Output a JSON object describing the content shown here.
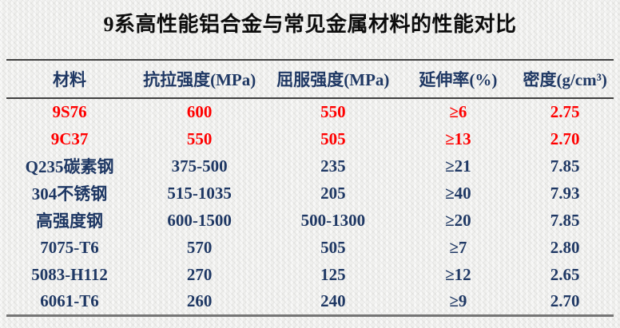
{
  "title": "9系高性能铝合金与常见金属材料的性能对比",
  "table": {
    "columns": [
      "材料",
      "抗拉强度(MPa)",
      "屈服强度(MPa)",
      "延伸率(%)",
      "密度(g/cm³)"
    ],
    "rows": [
      {
        "material": "9S76",
        "tensile": "600",
        "yield": "550",
        "elongation": "≥6",
        "density": "2.75",
        "highlighted": true
      },
      {
        "material": "9C37",
        "tensile": "550",
        "yield": "505",
        "elongation": "≥13",
        "density": "2.70",
        "highlighted": true
      },
      {
        "material": "Q235碳素钢",
        "tensile": "375-500",
        "yield": "235",
        "elongation": "≥21",
        "density": "7.85",
        "highlighted": false
      },
      {
        "material": "304不锈钢",
        "tensile": "515-1035",
        "yield": "205",
        "elongation": "≥40",
        "density": "7.93",
        "highlighted": false
      },
      {
        "material": "高强度钢",
        "tensile": "600-1500",
        "yield": "500-1300",
        "elongation": "≥20",
        "density": "7.85",
        "highlighted": false
      },
      {
        "material": "7075-T6",
        "tensile": "570",
        "yield": "505",
        "elongation": "≥7",
        "density": "2.80",
        "highlighted": false
      },
      {
        "material": "5083-H112",
        "tensile": "270",
        "yield": "125",
        "elongation": "≥12",
        "density": "2.65",
        "highlighted": false
      },
      {
        "material": "6061-T6",
        "tensile": "260",
        "yield": "240",
        "elongation": "≥9",
        "density": "2.70",
        "highlighted": false
      }
    ]
  },
  "colors": {
    "highlight_red": "#ff0000",
    "text_navy": "#1f3864",
    "title_black": "#0d0d0d",
    "rule_dark": "#3f3f3f",
    "rule_bottom": "#757575"
  }
}
